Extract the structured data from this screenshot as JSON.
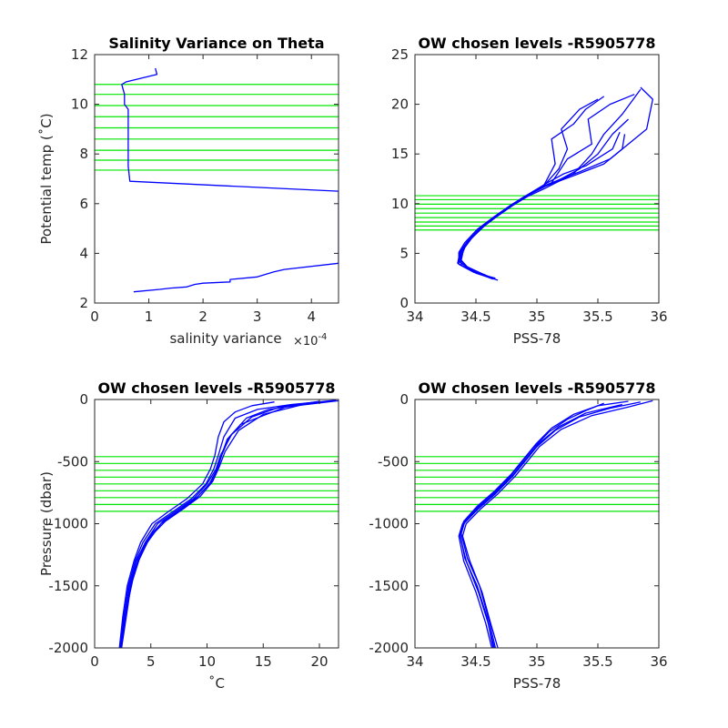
{
  "figure_title": "",
  "chart_data": [
    {
      "id": "p1",
      "type": "line",
      "title": "Salinity Variance on Theta",
      "xlabel": "salinity variance",
      "x_exponent": "×10-4",
      "ylabel": "Potential temp (˚C)",
      "xlim": [
        0,
        4.5
      ],
      "ylim": [
        2,
        12
      ],
      "xticks": [
        0,
        1,
        2,
        3,
        4
      ],
      "yticks": [
        2,
        4,
        6,
        8,
        10,
        12
      ],
      "xtick_labels": [
        "0",
        "1",
        "2",
        "3",
        "4"
      ],
      "ytick_labels": [
        "2",
        "4",
        "6",
        "8",
        "10",
        "12"
      ],
      "grid": false,
      "series": [
        {
          "color": "#0000ff",
          "x": [
            0.72,
            1.2,
            1.4,
            1.7,
            1.85,
            2.0,
            2.5,
            2.5,
            3.0,
            3.3,
            3.5,
            4.5,
            4.5,
            4.5,
            0.65,
            0.62,
            0.62,
            0.55,
            0.55,
            0.5,
            0.58,
            1.15,
            1.12
          ],
          "y": [
            2.45,
            2.55,
            2.6,
            2.65,
            2.75,
            2.8,
            2.85,
            2.95,
            3.05,
            3.25,
            3.35,
            3.6,
            4.5,
            6.5,
            6.9,
            7.5,
            9.8,
            10.0,
            10.4,
            10.8,
            10.9,
            11.2,
            11.45
          ]
        }
      ],
      "hlines": {
        "color": "#00e600",
        "y": [
          7.35,
          7.75,
          8.15,
          8.6,
          9.05,
          9.5,
          9.95,
          10.4,
          10.8
        ]
      }
    },
    {
      "id": "p2",
      "type": "line",
      "title": "OW chosen levels -R5905778",
      "xlabel": "PSS-78",
      "ylabel": "",
      "xlim": [
        34,
        36
      ],
      "ylim": [
        0,
        25
      ],
      "xticks": [
        34,
        34.5,
        35,
        35.5,
        36
      ],
      "yticks": [
        0,
        5,
        10,
        15,
        20,
        25
      ],
      "xtick_labels": [
        "34",
        "34.5",
        "35",
        "35.5",
        "36"
      ],
      "ytick_labels": [
        "0",
        "5",
        "10",
        "15",
        "20",
        "25"
      ],
      "grid": false,
      "series": [
        {
          "color": "#0000ff",
          "x": [
            34.68,
            34.5,
            34.38,
            34.37,
            34.42,
            34.52,
            34.66,
            34.8,
            34.92,
            35.06,
            35.3,
            35.45,
            35.55,
            35.7,
            35.85
          ],
          "y": [
            2.3,
            3.0,
            3.8,
            5.0,
            6.0,
            7.3,
            8.6,
            9.8,
            10.7,
            11.5,
            13.0,
            15.0,
            17.0,
            19.0,
            21.5
          ]
        },
        {
          "color": "#0000ff",
          "x": [
            34.66,
            34.48,
            34.36,
            34.36,
            34.41,
            34.51,
            34.65,
            34.79,
            34.91,
            35.04,
            35.2,
            35.35,
            35.5,
            35.62,
            35.75
          ],
          "y": [
            2.5,
            3.1,
            3.9,
            5.1,
            6.1,
            7.4,
            8.7,
            9.9,
            10.8,
            11.6,
            12.5,
            13.5,
            15.0,
            17.0,
            18.5
          ]
        },
        {
          "color": "#0000ff",
          "x": [
            34.64,
            34.47,
            34.35,
            34.37,
            34.43,
            34.53,
            34.67,
            34.81,
            34.93,
            35.05,
            35.18,
            35.25,
            35.2,
            35.35,
            35.5
          ],
          "y": [
            2.4,
            3.2,
            4.0,
            5.2,
            6.2,
            7.5,
            8.8,
            10.0,
            10.9,
            11.7,
            13.5,
            15.5,
            17.5,
            19.5,
            20.5
          ]
        },
        {
          "color": "#0000ff",
          "x": [
            34.62,
            34.46,
            34.37,
            34.38,
            34.44,
            34.55,
            34.69,
            34.83,
            34.95,
            35.08,
            35.3,
            35.55,
            35.7,
            35.72
          ],
          "y": [
            2.6,
            3.3,
            4.1,
            5.3,
            6.3,
            7.6,
            8.9,
            10.1,
            11.0,
            11.8,
            12.8,
            14.0,
            15.5,
            17.0
          ]
        },
        {
          "color": "#0000ff",
          "x": [
            34.6,
            34.45,
            34.36,
            34.39,
            34.45,
            34.56,
            34.7,
            34.84,
            34.96,
            35.06,
            35.15,
            35.12,
            35.3,
            35.4,
            35.55
          ],
          "y": [
            2.7,
            3.4,
            4.2,
            5.4,
            6.4,
            7.7,
            9.0,
            10.2,
            11.1,
            11.9,
            14.0,
            16.5,
            18.0,
            19.5,
            20.8
          ]
        },
        {
          "color": "#0000ff",
          "x": [
            34.58,
            34.44,
            34.38,
            34.4,
            34.46,
            34.57,
            34.71,
            34.85,
            34.97,
            35.1,
            35.35,
            35.6,
            35.9,
            35.95,
            35.85
          ],
          "y": [
            2.8,
            3.5,
            4.3,
            5.5,
            6.5,
            7.8,
            9.1,
            10.3,
            11.2,
            12.0,
            13.2,
            14.5,
            17.5,
            20.5,
            21.7
          ]
        },
        {
          "color": "#0000ff",
          "x": [
            34.56,
            34.43,
            34.37,
            34.41,
            34.47,
            34.58,
            34.72,
            34.86,
            34.98,
            35.12,
            35.25,
            35.45,
            35.42,
            35.6,
            35.8
          ],
          "y": [
            2.9,
            3.6,
            4.4,
            5.6,
            6.6,
            7.9,
            9.2,
            10.4,
            11.3,
            12.1,
            14.5,
            16.0,
            18.5,
            20.0,
            21.0
          ]
        },
        {
          "color": "#0000ff",
          "x": [
            34.54,
            34.42,
            34.36,
            34.4,
            34.48,
            34.59,
            34.73,
            34.87,
            34.99,
            35.1,
            35.22,
            35.4,
            35.62,
            35.68
          ],
          "y": [
            3.0,
            3.7,
            4.5,
            5.7,
            6.7,
            8.0,
            9.3,
            10.5,
            11.4,
            12.2,
            13.0,
            13.8,
            15.5,
            17.2
          ]
        }
      ],
      "hlines": {
        "color": "#00e600",
        "y": [
          7.35,
          7.75,
          8.15,
          8.6,
          9.05,
          9.5,
          9.95,
          10.4,
          10.8
        ]
      }
    },
    {
      "id": "p3",
      "type": "line",
      "title": "OW chosen levels -R5905778",
      "xlabel": "˚C",
      "ylabel": "Pressure (dbar)",
      "xlim": [
        0,
        21.7
      ],
      "ylim": [
        -2000,
        0
      ],
      "xticks": [
        0,
        5,
        10,
        15,
        20
      ],
      "yticks": [
        -2000,
        -1500,
        -1000,
        -500,
        0
      ],
      "xtick_labels": [
        "0",
        "5",
        "10",
        "15",
        "20"
      ],
      "ytick_labels": [
        "-2000",
        "-1500",
        "-1000",
        "-500",
        "0"
      ],
      "grid": false,
      "series": [
        {
          "color": "#0000ff",
          "x": [
            2.3,
            2.6,
            3.0,
            3.6,
            4.3,
            5.4,
            7.0,
            8.6,
            9.9,
            10.6,
            11.0,
            11.5,
            12.5,
            14.5,
            17.5,
            21.0
          ],
          "y": [
            -2000,
            -1750,
            -1500,
            -1300,
            -1150,
            -1000,
            -900,
            -800,
            -680,
            -560,
            -450,
            -300,
            -150,
            -80,
            -40,
            -10
          ]
        },
        {
          "color": "#0000ff",
          "x": [
            2.4,
            2.7,
            3.2,
            3.9,
            4.7,
            5.9,
            7.5,
            9.0,
            10.2,
            10.9,
            11.3,
            12.0,
            13.5,
            15.5,
            18.5,
            21.5
          ],
          "y": [
            -2000,
            -1750,
            -1500,
            -1300,
            -1150,
            -1000,
            -900,
            -800,
            -680,
            -560,
            -450,
            -300,
            -150,
            -80,
            -40,
            -5
          ]
        },
        {
          "color": "#0000ff",
          "x": [
            2.2,
            2.5,
            2.9,
            3.5,
            4.1,
            5.1,
            6.6,
            8.2,
            9.6,
            10.3,
            10.7,
            11.0,
            11.5,
            12.5,
            14.0,
            16.0
          ],
          "y": [
            -2000,
            -1750,
            -1500,
            -1300,
            -1150,
            -1000,
            -900,
            -800,
            -680,
            -560,
            -450,
            -300,
            -180,
            -100,
            -50,
            -20
          ]
        },
        {
          "color": "#0000ff",
          "x": [
            2.3,
            2.8,
            3.4,
            4.1,
            5.0,
            6.3,
            7.9,
            9.4,
            10.5,
            11.1,
            11.6,
            12.8,
            15.0,
            19.0
          ],
          "y": [
            -2000,
            -1700,
            -1450,
            -1250,
            -1100,
            -980,
            -880,
            -780,
            -660,
            -540,
            -420,
            -250,
            -120,
            -30
          ]
        },
        {
          "color": "#0000ff",
          "x": [
            2.3,
            2.6,
            3.1,
            3.7,
            4.5,
            5.6,
            7.2,
            8.8,
            10.0,
            10.8,
            11.2,
            12.2,
            14.0,
            16.5,
            20.0
          ],
          "y": [
            -2000,
            -1750,
            -1500,
            -1300,
            -1150,
            -1000,
            -900,
            -800,
            -680,
            -560,
            -450,
            -280,
            -140,
            -60,
            -15
          ]
        },
        {
          "color": "#0000ff",
          "x": [
            2.4,
            2.9,
            3.3,
            4.0,
            4.9,
            6.1,
            7.7,
            9.2,
            10.4,
            11.0,
            11.4,
            11.8,
            13.0,
            17.0,
            21.7
          ],
          "y": [
            -2000,
            -1700,
            -1450,
            -1250,
            -1100,
            -980,
            -880,
            -780,
            -660,
            -540,
            -420,
            -320,
            -200,
            -60,
            -10
          ]
        }
      ],
      "hlines": {
        "color": "#00e600",
        "y": [
          -900,
          -845,
          -790,
          -735,
          -680,
          -625,
          -570,
          -515,
          -460
        ]
      }
    },
    {
      "id": "p4",
      "type": "line",
      "title": "OW chosen levels -R5905778",
      "xlabel": "PSS-78",
      "ylabel": "",
      "xlim": [
        34,
        36
      ],
      "ylim": [
        -2000,
        0
      ],
      "xticks": [
        34,
        34.5,
        35,
        35.5,
        36
      ],
      "yticks": [
        -2000,
        -1500,
        -1000,
        -500,
        0
      ],
      "xtick_labels": [
        "34",
        "34.5",
        "35",
        "35.5",
        "36"
      ],
      "ytick_labels": [
        "-2000",
        "-1500",
        "-1000",
        "-500",
        "0"
      ],
      "grid": false,
      "series": [
        {
          "color": "#0000ff",
          "x": [
            34.65,
            34.6,
            34.52,
            34.42,
            34.37,
            34.4,
            34.52,
            34.66,
            34.8,
            34.9,
            35.0,
            35.15,
            35.35,
            35.6,
            35.85
          ],
          "y": [
            -2000,
            -1800,
            -1550,
            -1300,
            -1100,
            -1000,
            -880,
            -760,
            -620,
            -500,
            -380,
            -250,
            -140,
            -70,
            -20
          ]
        },
        {
          "color": "#0000ff",
          "x": [
            34.68,
            34.62,
            34.55,
            34.45,
            34.39,
            34.42,
            34.54,
            34.68,
            34.82,
            34.92,
            35.02,
            35.2,
            35.45,
            35.75,
            35.95
          ],
          "y": [
            -2000,
            -1800,
            -1550,
            -1300,
            -1100,
            -1000,
            -880,
            -760,
            -620,
            -500,
            -380,
            -240,
            -130,
            -60,
            -10
          ]
        },
        {
          "color": "#0000ff",
          "x": [
            34.63,
            34.58,
            34.5,
            34.4,
            34.36,
            34.39,
            34.5,
            34.64,
            34.78,
            34.88,
            34.98,
            35.1,
            35.25,
            35.4,
            35.55
          ],
          "y": [
            -2000,
            -1800,
            -1550,
            -1300,
            -1100,
            -1000,
            -880,
            -760,
            -620,
            -500,
            -380,
            -260,
            -160,
            -90,
            -30
          ]
        },
        {
          "color": "#0000ff",
          "x": [
            34.66,
            34.6,
            34.53,
            34.43,
            34.38,
            34.41,
            34.53,
            34.67,
            34.81,
            34.91,
            35.01,
            35.18,
            35.4,
            35.7
          ],
          "y": [
            -2000,
            -1750,
            -1500,
            -1280,
            -1080,
            -980,
            -860,
            -740,
            -600,
            -480,
            -360,
            -220,
            -110,
            -40
          ]
        },
        {
          "color": "#0000ff",
          "x": [
            34.64,
            34.59,
            34.51,
            34.41,
            34.37,
            34.4,
            34.51,
            34.65,
            34.79,
            34.89,
            34.99,
            35.12,
            35.3,
            35.5,
            35.75
          ],
          "y": [
            -2000,
            -1750,
            -1500,
            -1280,
            -1080,
            -980,
            -860,
            -740,
            -600,
            -480,
            -360,
            -230,
            -120,
            -50,
            -15
          ]
        }
      ],
      "hlines": {
        "color": "#00e600",
        "y": [
          -900,
          -845,
          -790,
          -735,
          -680,
          -625,
          -570,
          -515,
          -460
        ]
      }
    }
  ]
}
